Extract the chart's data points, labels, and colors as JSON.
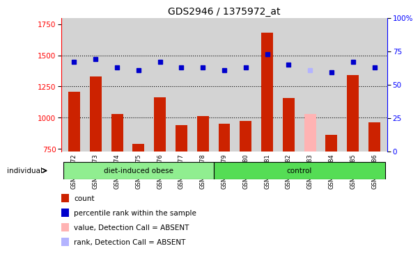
{
  "title": "GDS2946 / 1375972_at",
  "samples": [
    "GSM215572",
    "GSM215573",
    "GSM215574",
    "GSM215575",
    "GSM215576",
    "GSM215577",
    "GSM215578",
    "GSM215579",
    "GSM215580",
    "GSM215581",
    "GSM215582",
    "GSM215583",
    "GSM215584",
    "GSM215585",
    "GSM215586"
  ],
  "count_values": [
    1210,
    1330,
    1030,
    790,
    1165,
    940,
    1010,
    950,
    975,
    1680,
    1160,
    1030,
    860,
    1340,
    960
  ],
  "count_colors": [
    "#cc2200",
    "#cc2200",
    "#cc2200",
    "#cc2200",
    "#cc2200",
    "#cc2200",
    "#cc2200",
    "#cc2200",
    "#cc2200",
    "#cc2200",
    "#cc2200",
    "#ffb3b3",
    "#cc2200",
    "#cc2200",
    "#cc2200"
  ],
  "rank_values": [
    67,
    69,
    63,
    61,
    67,
    63,
    63,
    61,
    63,
    73,
    65,
    61,
    59,
    67,
    63
  ],
  "rank_colors": [
    "#0000cc",
    "#0000cc",
    "#0000cc",
    "#0000cc",
    "#0000cc",
    "#0000cc",
    "#0000cc",
    "#0000cc",
    "#0000cc",
    "#0000cc",
    "#0000cc",
    "#b3b3ff",
    "#0000cc",
    "#0000cc",
    "#0000cc"
  ],
  "ylim_left": [
    730,
    1800
  ],
  "ylim_right": [
    0,
    100
  ],
  "yticks_left": [
    750,
    1000,
    1250,
    1500,
    1750
  ],
  "yticks_right": [
    0,
    25,
    50,
    75,
    100
  ],
  "ytick_right_labels": [
    "0",
    "25",
    "50",
    "75",
    "100%"
  ],
  "group1_label": "diet-induced obese",
  "group2_label": "control",
  "group1_count": 7,
  "group2_count": 8,
  "individual_label": "individual",
  "group1_color": "#90ee90",
  "group2_color": "#55dd55",
  "bg_color": "#d3d3d3",
  "legend_items": [
    {
      "label": "count",
      "color": "#cc2200"
    },
    {
      "label": "percentile rank within the sample",
      "color": "#0000cc"
    },
    {
      "label": "value, Detection Call = ABSENT",
      "color": "#ffb3b3"
    },
    {
      "label": "rank, Detection Call = ABSENT",
      "color": "#b3b3ff"
    }
  ],
  "hgrid_values": [
    1000,
    1250,
    1500
  ],
  "bar_bottom": 730
}
